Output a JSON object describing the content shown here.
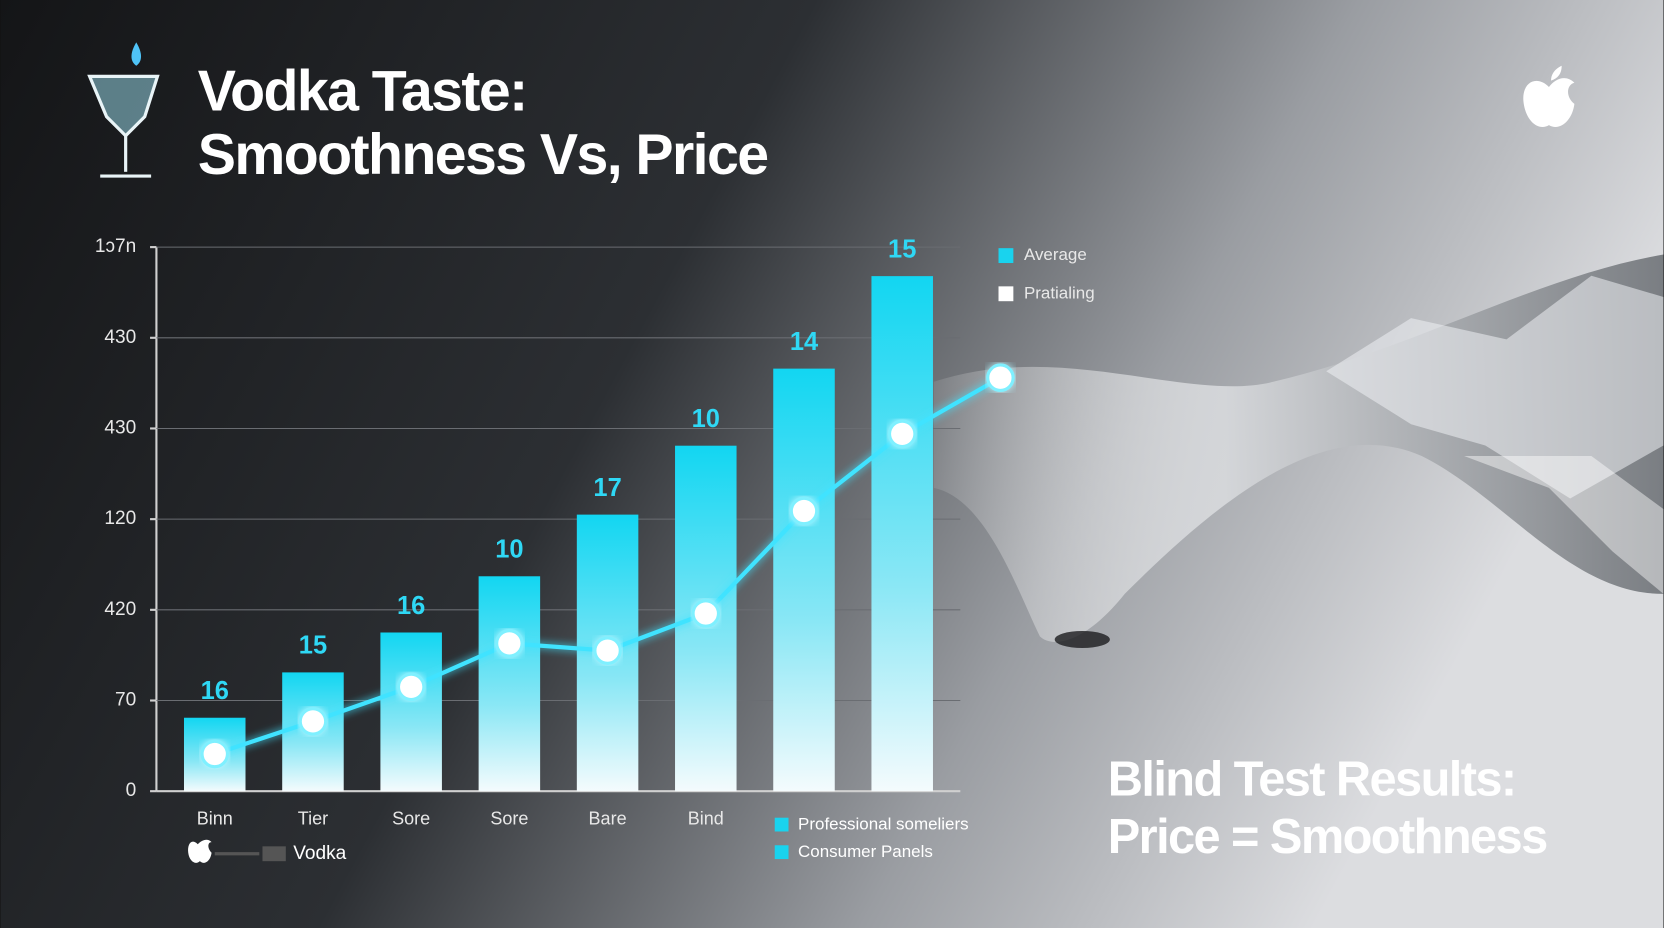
{
  "chart_data": {
    "type": "bar",
    "title": [
      "Vodka Taste:",
      "Smoothness Vs, Price"
    ],
    "categories": [
      "Binn",
      "Tier",
      "Sore",
      "Sore",
      "Bare",
      "Bind",
      null,
      null,
      null
    ],
    "series": [
      {
        "name": "Average",
        "type": "bar",
        "color": "#19d3ee",
        "values": [
          0.81,
          1.31,
          1.75,
          2.37,
          3.05,
          3.81,
          4.66,
          5.68,
          null
        ]
      },
      {
        "name": "Pratialing",
        "type": "line",
        "color": "#ffffff",
        "values": [
          0.41,
          0.77,
          1.15,
          1.63,
          1.55,
          1.96,
          3.09,
          3.94,
          4.56
        ]
      }
    ],
    "annotations": [
      "16",
      "15",
      "16",
      "10",
      "17",
      "10",
      "14",
      "15"
    ],
    "ylim": [
      0,
      6
    ],
    "yticks": [
      0,
      {
        "value": 1,
        "label": "70"
      },
      {
        "value": 2,
        "label": "420"
      },
      {
        "value": 3,
        "label": "120"
      },
      {
        "value": 4,
        "label": "430"
      },
      {
        "value": 5,
        "label": "430"
      },
      {
        "value": 6,
        "label": "1ɔ7n"
      }
    ],
    "grid": true,
    "legend": "upper right",
    "panel_legend": [
      "Professional someliers",
      "Consumer Panels"
    ],
    "brand_label": "Vodka",
    "footer_title": [
      "Blind Test Results:",
      "Price = Smoothness"
    ]
  }
}
